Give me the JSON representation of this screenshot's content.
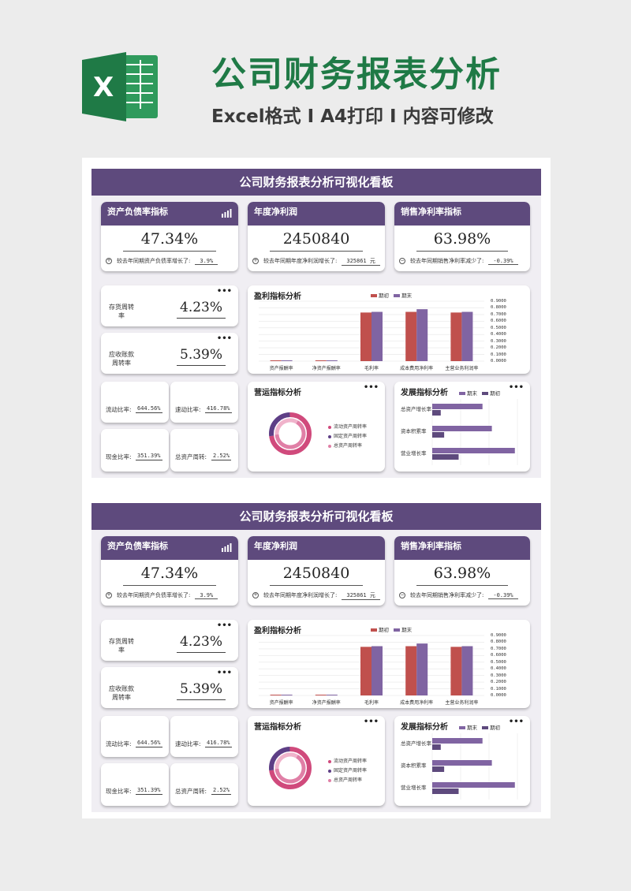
{
  "header": {
    "title": "公司财务报表分析",
    "subtitle": "Excel格式 I A4打印 I 内容可修改",
    "icon": "excel-icon"
  },
  "colors": {
    "brand_green": "#1f7a46",
    "accent_purple": "#5e4a7d",
    "series_red": "#c0504d",
    "series_purple": "#8064a2"
  },
  "dashboard": {
    "title": "公司财务报表分析可视化看板",
    "kpis": [
      {
        "label": "资产负债率指标",
        "value": "47.34%",
        "compare_text": "较去年同期资产负债率增长了:",
        "compare_value": "3.9%"
      },
      {
        "label": "年度净利润",
        "value": "2450840",
        "compare_text": "较去年同期年度净利润增长了:",
        "compare_value": "325861 元"
      },
      {
        "label": "销售净利率指标",
        "value": "63.98%",
        "compare_text": "较去年同期销售净利率减少了:",
        "compare_value": "-0.39%"
      }
    ],
    "turnover": [
      {
        "label": "存货周转率",
        "value": "4.23%"
      },
      {
        "label": "应收账款周转率",
        "value": "5.39%"
      }
    ],
    "ratios": [
      {
        "label": "流动比率:",
        "value": "644.56%"
      },
      {
        "label": "速动比率:",
        "value": "416.78%"
      },
      {
        "label": "现金比率:",
        "value": "351.39%"
      },
      {
        "label": "总资产周转:",
        "value": "2.52%"
      }
    ],
    "more_icon": "•••"
  },
  "chart_data": [
    {
      "type": "bar",
      "title": "盈利指标分析",
      "categories": [
        "资产报酬率",
        "净资产报酬率",
        "毛利率",
        "成本费用净利率",
        "主营业务利润率"
      ],
      "series": [
        {
          "name": "期初",
          "values": [
            0.01,
            0.01,
            0.73,
            0.74,
            0.73
          ],
          "color": "#c0504d"
        },
        {
          "name": "期末",
          "values": [
            0.01,
            0.01,
            0.74,
            0.78,
            0.74
          ],
          "color": "#8064a2"
        }
      ],
      "yticks": [
        "0.9000",
        "0.8000",
        "0.7000",
        "0.6000",
        "0.5000",
        "0.4000",
        "0.3000",
        "0.2000",
        "0.1000",
        "0.0000"
      ],
      "ylim": [
        0,
        0.9
      ]
    },
    {
      "type": "pie",
      "title": "营运指标分析",
      "categories": [
        "流动资产周转率",
        "固定资产周转率",
        "总资产周转率"
      ],
      "colors": [
        "#d04a7c",
        "#5e3f86",
        "#e07fa6"
      ]
    },
    {
      "type": "bar",
      "title": "发展指标分析",
      "categories": [
        "总资产增长率",
        "资本积累率",
        "营业增长率"
      ],
      "series": [
        {
          "name": "期末",
          "values": [
            0.59,
            0.7,
            0.97
          ],
          "color": "#8064a2"
        },
        {
          "name": "期初",
          "values": [
            0.1,
            0.14,
            0.31
          ],
          "color": "#5e4a7d"
        }
      ]
    }
  ]
}
